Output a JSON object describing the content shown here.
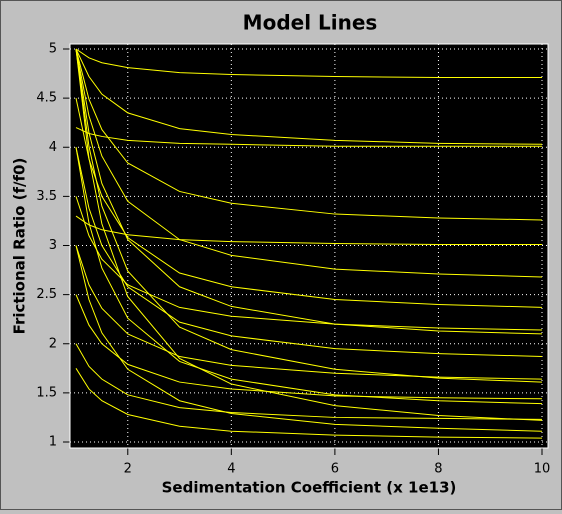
{
  "chart_data": {
    "type": "line",
    "title": "Model Lines",
    "x_label": "Sedimentation Coefficient (x 1e13)",
    "y_label": "Frictional Ratio (f/f0)",
    "color": "#ffff00",
    "grid": true,
    "xlim": [
      1,
      10
    ],
    "ylim": [
      1,
      5
    ],
    "xticks": [
      2,
      4,
      6,
      8,
      10
    ],
    "yticks": [
      1,
      1.5,
      2,
      2.5,
      3,
      3.5,
      4,
      4.5,
      5
    ],
    "x": [
      1,
      1.25,
      1.5,
      2,
      3,
      4,
      6,
      8,
      10
    ],
    "series": [
      {
        "values": [
          5,
          4.91,
          4.86,
          4.81,
          4.76,
          4.74,
          4.72,
          4.71,
          4.71
        ]
      },
      {
        "values": [
          5,
          4.72,
          4.54,
          4.35,
          4.19,
          4.13,
          4.07,
          4.04,
          4.03
        ]
      },
      {
        "values": [
          5,
          4.49,
          4.18,
          3.84,
          3.55,
          3.43,
          3.32,
          3.28,
          3.26
        ]
      },
      {
        "values": [
          5,
          4.32,
          3.91,
          3.45,
          3.06,
          2.9,
          2.76,
          2.71,
          2.68
        ]
      },
      {
        "values": [
          5,
          4.15,
          3.63,
          3.06,
          2.58,
          2.38,
          2.2,
          2.13,
          2.1
        ]
      },
      {
        "values": [
          5,
          4.01,
          3.4,
          2.74,
          2.17,
          1.94,
          1.74,
          1.65,
          1.61
        ]
      },
      {
        "values": [
          5,
          3.89,
          3.22,
          2.48,
          1.85,
          1.59,
          1.37,
          1.27,
          1.22
        ]
      },
      {
        "values": [
          4.5,
          3.88,
          3.5,
          3.08,
          2.72,
          2.58,
          2.45,
          2.4,
          2.37
        ]
      },
      {
        "values": [
          4,
          3.38,
          3,
          2.58,
          2.22,
          2.08,
          1.95,
          1.9,
          1.87
        ]
      },
      {
        "values": [
          4,
          3.23,
          2.77,
          2.26,
          1.82,
          1.64,
          1.48,
          1.42,
          1.39
        ]
      },
      {
        "values": [
          3.5,
          3.1,
          2.86,
          2.6,
          2.37,
          2.28,
          2.2,
          2.16,
          2.14
        ]
      },
      {
        "values": [
          3,
          2.6,
          2.36,
          2.1,
          1.87,
          1.78,
          1.7,
          1.66,
          1.64
        ]
      },
      {
        "values": [
          3,
          2.45,
          2.11,
          1.74,
          1.42,
          1.29,
          1.18,
          1.14,
          1.11
        ]
      },
      {
        "values": [
          2.5,
          2.19,
          2,
          1.79,
          1.61,
          1.54,
          1.47,
          1.45,
          1.44
        ]
      },
      {
        "values": [
          2,
          1.77,
          1.64,
          1.48,
          1.35,
          1.3,
          1.25,
          1.24,
          1.23
        ]
      },
      {
        "values": [
          1.75,
          1.54,
          1.42,
          1.28,
          1.16,
          1.11,
          1.07,
          1.05,
          1.04
        ]
      },
      {
        "values": [
          4.2,
          4.14,
          4.11,
          4.07,
          4.04,
          4.03,
          4.01,
          4.01,
          4.01
        ]
      },
      {
        "values": [
          3.3,
          3.21,
          3.16,
          3.11,
          3.06,
          3.04,
          3.02,
          3.01,
          3.01
        ]
      }
    ]
  }
}
